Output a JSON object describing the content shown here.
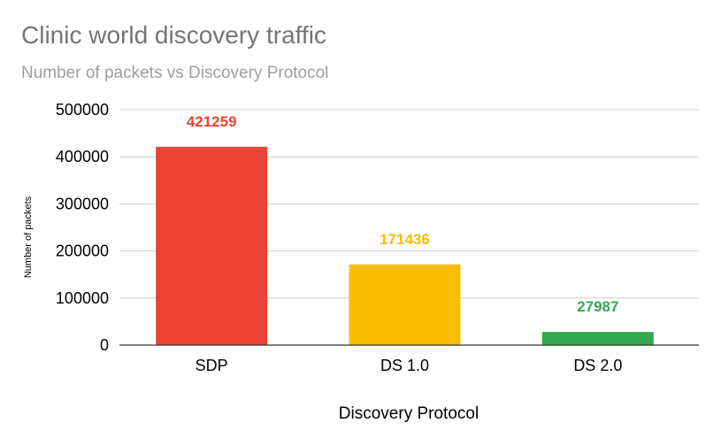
{
  "chart_data": {
    "type": "bar",
    "title": "Clinic world discovery traffic",
    "subtitle": "Number of packets vs Discovery Protocol",
    "xlabel": "Discovery Protocol",
    "ylabel": "Number of packets",
    "categories": [
      "SDP",
      "DS 1.0",
      "DS 2.0"
    ],
    "values": [
      421259,
      171436,
      27987
    ],
    "colors": [
      "#ea4335",
      "#fbbc04",
      "#34a853"
    ],
    "ylim": [
      0,
      500000
    ],
    "yticks": [
      "0",
      "100000",
      "200000",
      "300000",
      "400000",
      "500000"
    ],
    "grid": true,
    "legend": "none"
  }
}
